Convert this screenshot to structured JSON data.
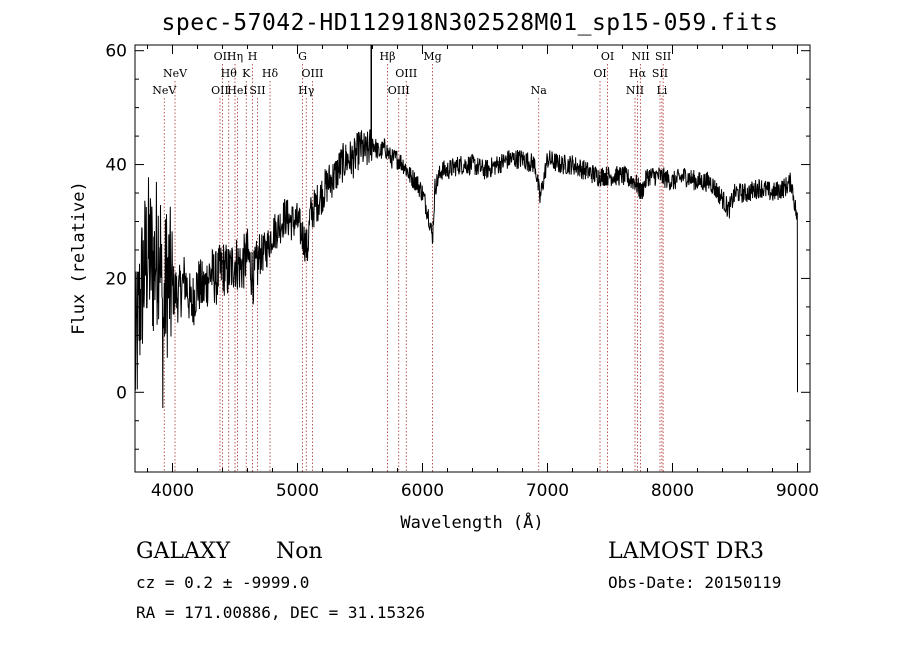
{
  "header": {
    "title": "spec-57042-HD112918N302528M01_sp15-059.fits"
  },
  "footer": {
    "object_class": "GALAXY",
    "object_subclass": "Non",
    "survey": "LAMOST DR3",
    "redshift": "cz = 0.2 ± -9999.0",
    "obs_date": "Obs-Date: 20150119",
    "coordinates": "RA = 171.00886, DEC =  31.15326"
  },
  "chart_data": {
    "type": "line",
    "title": "spec-57042-HD112918N302528M01_sp15-059.fits",
    "xlabel": "Wavelength (Å)",
    "ylabel": "Flux (relative)",
    "xlim": [
      3700,
      9100
    ],
    "ylim": [
      -14,
      61
    ],
    "x_ticks": [
      4000,
      5000,
      6000,
      7000,
      8000,
      9000
    ],
    "y_ticks": [
      0,
      20,
      40,
      60
    ],
    "grid": false,
    "series": [
      {
        "x": [
          3700,
          3750,
          3800,
          3850,
          3900,
          3920,
          3950,
          4000,
          4050,
          4100,
          4150,
          4200,
          4250,
          4300,
          4350,
          4400,
          4450,
          4500,
          4550,
          4600,
          4650,
          4700,
          4750,
          4800,
          4850,
          4900,
          4950,
          5000,
          5050,
          5080,
          5100,
          5150,
          5200,
          5250,
          5300,
          5350,
          5400,
          5450,
          5500,
          5550,
          5600,
          5650,
          5700,
          5750,
          5800,
          5850,
          5900,
          5950,
          6000,
          6050,
          6080,
          6100,
          6150,
          6200,
          6300,
          6400,
          6500,
          6600,
          6700,
          6800,
          6900,
          6940,
          7000,
          7100,
          7200,
          7300,
          7400,
          7500,
          7600,
          7700,
          7750,
          7800,
          7900,
          8000,
          8100,
          8200,
          8300,
          8400,
          8450,
          8500,
          8600,
          8700,
          8800,
          8900,
          8950,
          9000
        ],
        "y": [
          5,
          18,
          25,
          22,
          28,
          10,
          20,
          18,
          17,
          20,
          15,
          19,
          18,
          21,
          20,
          22,
          21,
          23,
          22,
          24,
          20,
          24,
          25,
          28,
          29,
          31,
          30,
          30,
          27,
          25,
          31,
          33,
          35,
          37,
          38,
          40,
          41,
          41,
          43,
          42,
          44,
          42,
          43,
          41,
          41,
          40,
          38,
          37,
          35,
          31,
          27,
          36,
          39,
          39,
          40,
          40,
          39,
          40,
          41,
          41,
          40,
          34,
          41,
          40,
          40,
          39,
          38,
          38,
          38,
          37,
          35,
          38,
          38,
          37,
          38,
          37,
          37,
          34,
          32,
          35,
          35,
          36,
          35,
          36,
          37,
          30
        ]
      }
    ],
    "lines": [
      {
        "w": 3934,
        "label": "NeV",
        "tier": 3
      },
      {
        "w": 4020,
        "label": "NeV",
        "tier": 2
      },
      {
        "w": 4380,
        "label": "OII",
        "tier": 3
      },
      {
        "w": 4400,
        "label": "OII",
        "tier": 1
      },
      {
        "w": 4450,
        "label": "Hθ",
        "tier": 2
      },
      {
        "w": 4500,
        "label": "Hη",
        "tier": 1
      },
      {
        "w": 4520,
        "label": "HeI",
        "tier": 3
      },
      {
        "w": 4590,
        "label": "K",
        "tier": 2
      },
      {
        "w": 4640,
        "label": "H",
        "tier": 1
      },
      {
        "w": 4680,
        "label": "SII",
        "tier": 3
      },
      {
        "w": 4780,
        "label": "Hδ",
        "tier": 2
      },
      {
        "w": 5040,
        "label": "G",
        "tier": 1
      },
      {
        "w": 5070,
        "label": "Hγ",
        "tier": 3
      },
      {
        "w": 5120,
        "label": "OIII",
        "tier": 2
      },
      {
        "w": 5720,
        "label": "Hβ",
        "tier": 1
      },
      {
        "w": 5810,
        "label": "OIII",
        "tier": 3
      },
      {
        "w": 5870,
        "label": "OIII",
        "tier": 2
      },
      {
        "w": 6080,
        "label": "Mg",
        "tier": 1
      },
      {
        "w": 6930,
        "label": "Na",
        "tier": 3
      },
      {
        "w": 7420,
        "label": "OI",
        "tier": 2
      },
      {
        "w": 7480,
        "label": "OI",
        "tier": 1
      },
      {
        "w": 7700,
        "label": "NII",
        "tier": 3
      },
      {
        "w": 7720,
        "label": "Hα",
        "tier": 2
      },
      {
        "w": 7745,
        "label": "NII",
        "tier": 1
      },
      {
        "w": 7900,
        "label": "SII",
        "tier": 2
      },
      {
        "w": 7915,
        "label": "Li",
        "tier": 3
      },
      {
        "w": 7925,
        "label": "SII",
        "tier": 1
      }
    ]
  }
}
